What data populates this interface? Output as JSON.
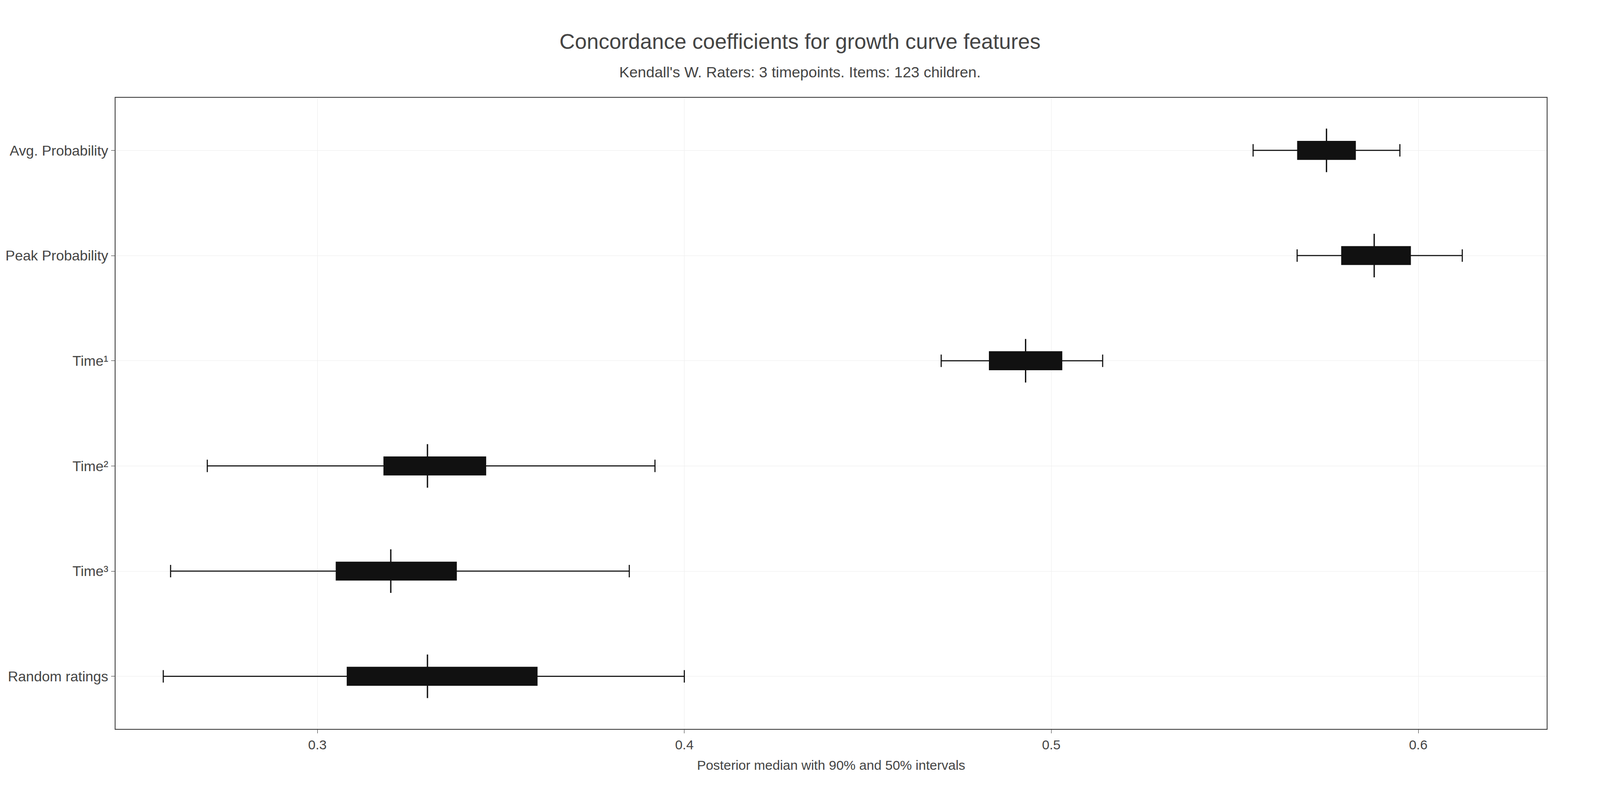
{
  "chart_data": {
    "type": "interval",
    "title": "Concordance coefficients for growth curve features",
    "subtitle": "Kendall's W. Raters: 3 timepoints. Items: 123 children.",
    "xlabel": "Posterior median with 90% and 50% intervals",
    "categories": [
      "Random ratings",
      "Time³",
      "Time²",
      "Time¹",
      "Peak Probability",
      "Avg. Probability"
    ],
    "values": [
      0.33,
      0.32,
      0.33,
      0.493,
      0.588,
      0.575
    ],
    "ci50_lo": [
      0.308,
      0.305,
      0.318,
      0.483,
      0.579,
      0.567
    ],
    "ci50_hi": [
      0.36,
      0.338,
      0.346,
      0.503,
      0.598,
      0.583
    ],
    "ci90_lo": [
      0.258,
      0.26,
      0.27,
      0.47,
      0.567,
      0.555
    ],
    "ci90_hi": [
      0.4,
      0.385,
      0.392,
      0.514,
      0.612,
      0.595
    ],
    "orientation": "horizontal",
    "color": "#111111",
    "xlim": [
      0.245,
      0.635
    ],
    "xticks": [
      0.3,
      0.4,
      0.5,
      0.6
    ],
    "grid": true
  }
}
